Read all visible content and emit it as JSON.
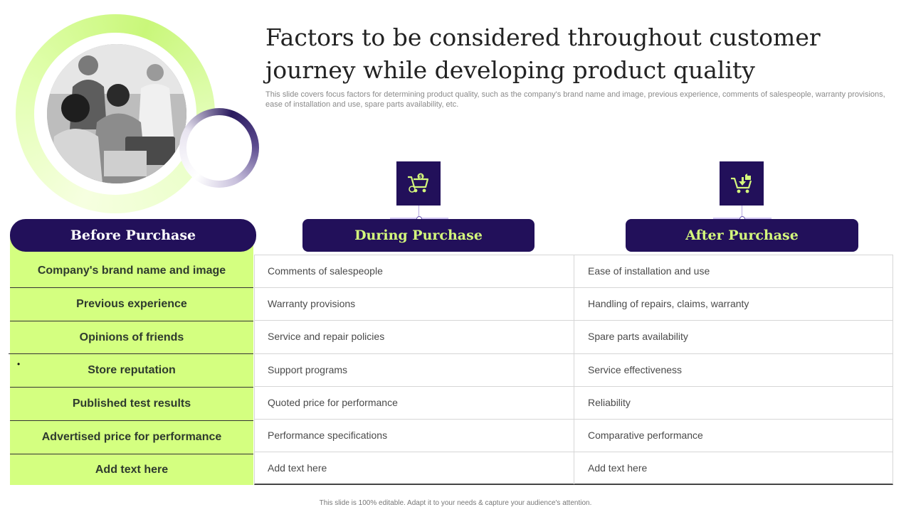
{
  "title": "Factors to be considered throughout customer journey while developing product quality",
  "subtitle": "This slide covers focus factors for determining product quality, such as the company's brand name and image, previous experience, comments of salespeople, warranty provisions, ease of installation and use, spare parts availability, etc.",
  "columns": {
    "before": {
      "header": "Before Purchase",
      "items": [
        "Company's brand name and image",
        "Previous experience",
        "Opinions of friends",
        "Store reputation",
        "Published test results",
        "Advertised price for performance",
        "Add text here"
      ]
    },
    "during": {
      "header": "During Purchase",
      "icon": "cart-dollar-icon",
      "items": [
        "Comments of salespeople",
        "Warranty provisions",
        "Service and repair policies",
        "Support programs",
        "Quoted price for performance",
        "Performance specifications",
        "Add text here"
      ]
    },
    "after": {
      "header": "After Purchase",
      "icon": "cart-thumbs-up-icon",
      "items": [
        "Ease of installation and use",
        "Handling of repairs, claims, warranty",
        "Spare parts availability",
        "Service effectiveness",
        "Reliability",
        "Comparative performance",
        "Add text here"
      ]
    }
  },
  "bullet": "•",
  "footer": "This slide is 100% editable. Adapt it to your needs & capture your audience's attention.",
  "colors": {
    "navy": "#22105a",
    "lime": "#d4ff80",
    "lime_text": "#d4f87c"
  }
}
